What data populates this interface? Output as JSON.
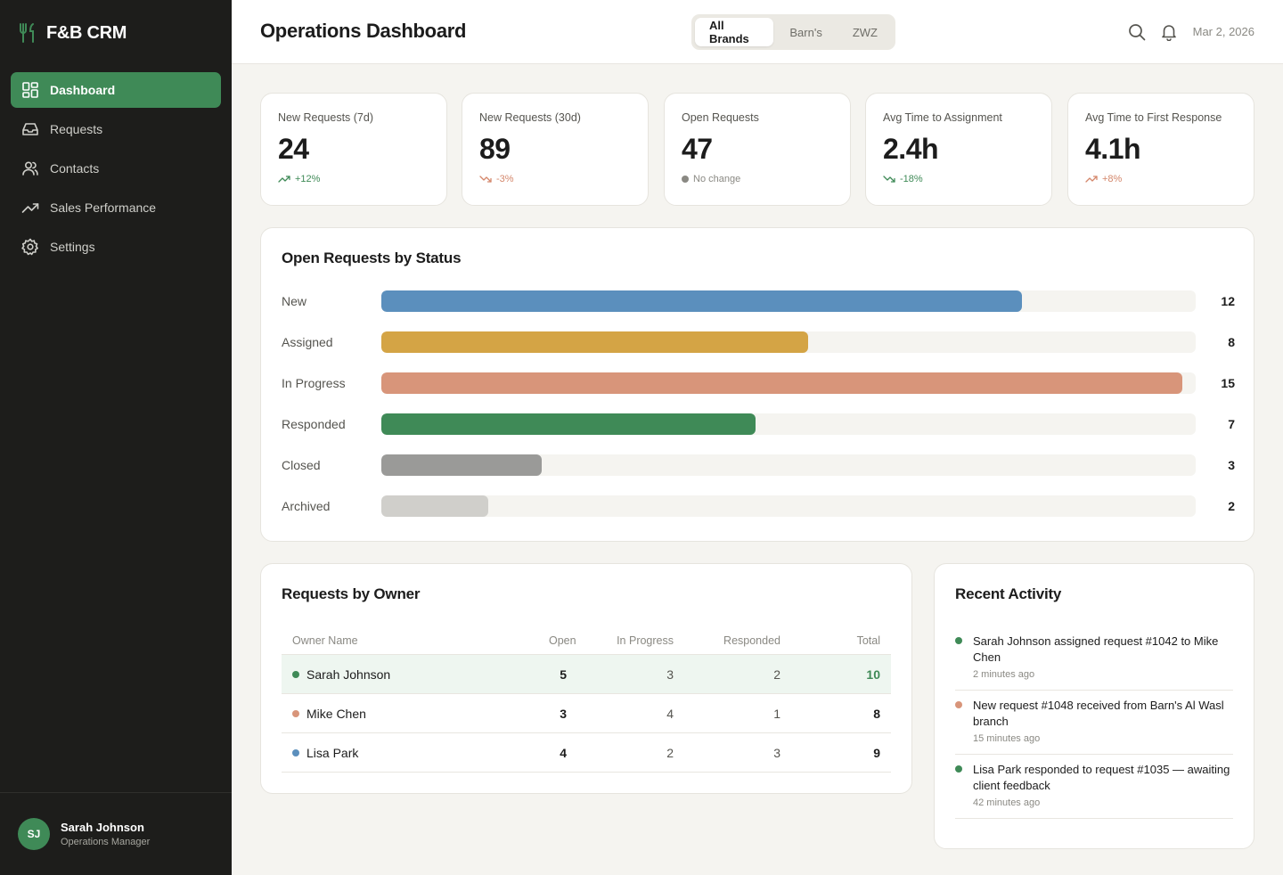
{
  "app": {
    "name": "F&B CRM"
  },
  "colors": {
    "accent": "#3f8a57",
    "sidebar": "#1d1d1b",
    "negative": "#d4876b",
    "neutral": "#8a8983"
  },
  "sidebar": {
    "items": [
      {
        "label": "Dashboard",
        "icon": "dashboard-icon",
        "active": true
      },
      {
        "label": "Requests",
        "icon": "inbox-icon"
      },
      {
        "label": "Contacts",
        "icon": "users-icon"
      },
      {
        "label": "Sales Performance",
        "icon": "trend-up-icon"
      },
      {
        "label": "Settings",
        "icon": "gear-icon"
      }
    ],
    "user": {
      "initials": "SJ",
      "name": "Sarah Johnson",
      "role": "Operations Manager"
    }
  },
  "header": {
    "title": "Operations Dashboard",
    "brand_tabs": [
      "All Brands",
      "Barn's",
      "ZWZ"
    ],
    "selected_brand": "All Brands",
    "date": "Mar 2, 2026"
  },
  "kpis": [
    {
      "label": "New Requests (7d)",
      "value": "24",
      "delta": "+12%",
      "trend": "up-good"
    },
    {
      "label": "New Requests (30d)",
      "value": "89",
      "delta": "-3%",
      "trend": "down-bad"
    },
    {
      "label": "Open Requests",
      "value": "47",
      "delta": "No change",
      "trend": "neutral"
    },
    {
      "label": "Avg Time to Assignment",
      "value": "2.4h",
      "delta": "-18%",
      "trend": "down-good"
    },
    {
      "label": "Avg Time to First Response",
      "value": "4.1h",
      "delta": "+8%",
      "trend": "up-bad"
    }
  ],
  "status_panel": {
    "title": "Open Requests by Status"
  },
  "chart_data": {
    "type": "bar",
    "orientation": "horizontal",
    "title": "Open Requests by Status",
    "categories": [
      "New",
      "Assigned",
      "In Progress",
      "Responded",
      "Closed",
      "Archived"
    ],
    "values": [
      12,
      8,
      15,
      7,
      3,
      2
    ],
    "colors": [
      "#5b8fbd",
      "#d4a445",
      "#d8957a",
      "#3f8a57",
      "#9a9a98",
      "#d0cfcb"
    ],
    "xlim": [
      0,
      15.25
    ],
    "grid": false
  },
  "owner_panel": {
    "title": "Requests by Owner",
    "columns": [
      "Owner Name",
      "Open",
      "In Progress",
      "Responded",
      "Total"
    ],
    "rows": [
      {
        "name": "Sarah Johnson",
        "color": "#3f8a57",
        "open": "5",
        "in_progress": "3",
        "responded": "2",
        "total": "10",
        "highlight": true
      },
      {
        "name": "Mike Chen",
        "color": "#d8957a",
        "open": "3",
        "in_progress": "4",
        "responded": "1",
        "total": "8"
      },
      {
        "name": "Lisa Park",
        "color": "#5b8fbd",
        "open": "4",
        "in_progress": "2",
        "responded": "3",
        "total": "9"
      }
    ]
  },
  "activity_panel": {
    "title": "Recent Activity",
    "items": [
      {
        "text": "Sarah Johnson assigned request #1042 to Mike Chen",
        "time": "2 minutes ago",
        "color": "#3f8a57"
      },
      {
        "text": "New request #1048 received from Barn's Al Wasl branch",
        "time": "15 minutes ago",
        "color": "#d8957a"
      },
      {
        "text": "Lisa Park responded to request #1035 — awaiting client feedback",
        "time": "42 minutes ago",
        "color": "#3f8a57"
      }
    ]
  }
}
